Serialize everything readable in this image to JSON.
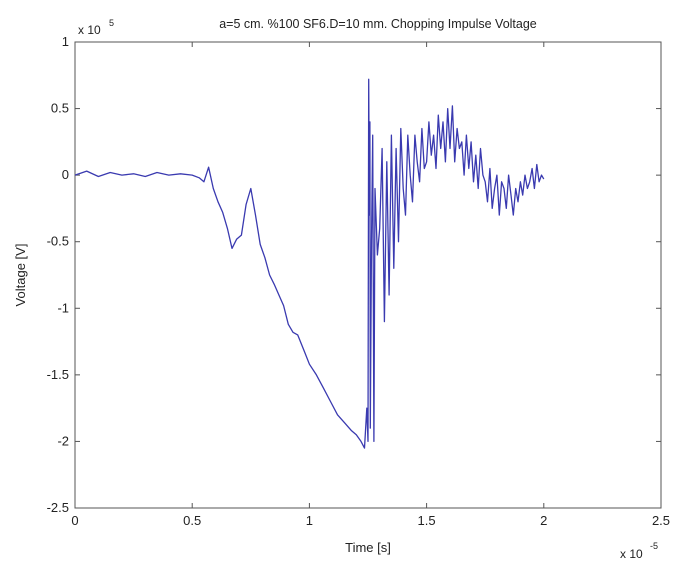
{
  "chart_data": {
    "type": "line",
    "title": "a=5 cm. %100 SF6.D=10 mm. Chopping Impulse Voltage",
    "xlabel": "Time [s]",
    "ylabel": "Voltage [V]",
    "xlim": [
      0,
      2.5
    ],
    "ylim": [
      -2.5,
      1
    ],
    "x_ticks": [
      "0",
      "0.5",
      "1",
      "1.5",
      "2",
      "2.5"
    ],
    "y_ticks": [
      "1",
      "0.5",
      "0",
      "-0.5",
      "-1",
      "-1.5",
      "-2",
      "-2.5"
    ],
    "x_multiplier": {
      "base": "x 10",
      "exponent": "-5"
    },
    "y_multiplier": {
      "base": "x 10",
      "exponent": "5"
    },
    "grid": false,
    "line_color": "#3a3ab0",
    "series": [
      {
        "x": [
          0,
          0.05,
          0.1,
          0.15,
          0.2,
          0.25,
          0.3,
          0.35,
          0.4,
          0.45,
          0.5,
          0.53,
          0.55,
          0.57,
          0.59,
          0.61,
          0.63,
          0.65,
          0.67,
          0.69,
          0.71,
          0.73,
          0.75,
          0.77,
          0.79,
          0.81,
          0.83,
          0.85,
          0.87,
          0.89,
          0.91,
          0.93,
          0.95,
          0.98,
          1.0,
          1.03,
          1.06,
          1.09,
          1.12,
          1.15,
          1.18,
          1.2,
          1.22,
          1.235,
          1.245,
          1.25,
          1.253,
          1.256,
          1.258,
          1.26,
          1.265,
          1.27,
          1.275,
          1.28,
          1.29,
          1.3,
          1.31,
          1.32,
          1.33,
          1.34,
          1.35,
          1.36,
          1.37,
          1.38,
          1.39,
          1.4,
          1.41,
          1.42,
          1.43,
          1.44,
          1.45,
          1.46,
          1.47,
          1.48,
          1.49,
          1.5,
          1.51,
          1.52,
          1.53,
          1.54,
          1.55,
          1.56,
          1.57,
          1.58,
          1.59,
          1.6,
          1.61,
          1.62,
          1.63,
          1.64,
          1.65,
          1.66,
          1.67,
          1.68,
          1.69,
          1.7,
          1.71,
          1.72,
          1.73,
          1.74,
          1.75,
          1.76,
          1.77,
          1.78,
          1.79,
          1.8,
          1.81,
          1.82,
          1.83,
          1.84,
          1.85,
          1.86,
          1.87,
          1.88,
          1.89,
          1.9,
          1.91,
          1.92,
          1.93,
          1.94,
          1.95,
          1.96,
          1.97,
          1.98,
          1.99,
          2.0
        ],
        "y": [
          0.0,
          0.03,
          -0.01,
          0.02,
          0.0,
          0.01,
          -0.01,
          0.02,
          0.0,
          0.01,
          0.0,
          -0.02,
          -0.05,
          0.06,
          -0.1,
          -0.2,
          -0.28,
          -0.4,
          -0.55,
          -0.48,
          -0.45,
          -0.22,
          -0.1,
          -0.3,
          -0.52,
          -0.62,
          -0.75,
          -0.82,
          -0.9,
          -0.98,
          -1.12,
          -1.18,
          -1.2,
          -1.33,
          -1.42,
          -1.5,
          -1.6,
          -1.7,
          -1.8,
          -1.86,
          -1.92,
          -1.95,
          -2.0,
          -2.05,
          -1.75,
          -2.0,
          0.72,
          -0.3,
          0.4,
          -1.9,
          -0.5,
          0.3,
          -2.0,
          -0.1,
          -0.6,
          -0.4,
          0.2,
          -1.1,
          0.1,
          -0.9,
          0.3,
          -0.7,
          0.2,
          -0.5,
          0.35,
          -0.1,
          -0.3,
          0.3,
          0.0,
          -0.2,
          0.3,
          0.1,
          -0.05,
          0.35,
          0.05,
          0.1,
          0.4,
          0.15,
          0.3,
          0.05,
          0.45,
          0.2,
          0.4,
          0.1,
          0.5,
          0.2,
          0.52,
          0.1,
          0.35,
          0.2,
          0.25,
          0.0,
          0.3,
          0.05,
          0.25,
          -0.05,
          0.15,
          -0.1,
          0.2,
          0.0,
          -0.05,
          -0.2,
          0.05,
          -0.25,
          -0.1,
          0.0,
          -0.3,
          -0.05,
          -0.1,
          -0.25,
          0.0,
          -0.15,
          -0.3,
          -0.1,
          -0.2,
          -0.05,
          -0.15,
          0.0,
          -0.1,
          -0.05,
          0.05,
          -0.1,
          0.08,
          -0.05,
          0.0,
          -0.03
        ]
      }
    ]
  }
}
